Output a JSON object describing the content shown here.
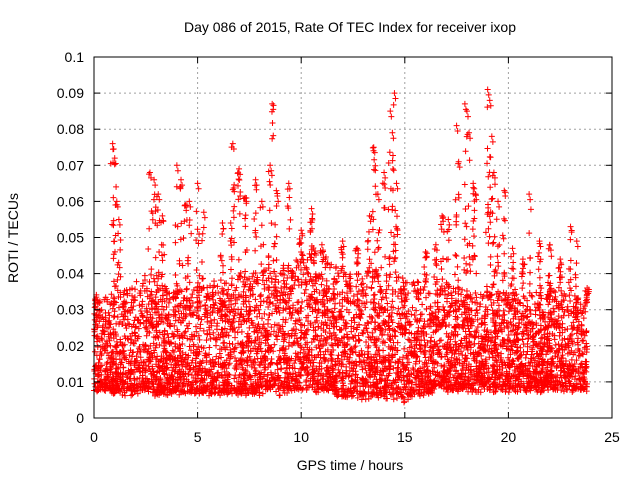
{
  "chart_data": {
    "type": "scatter",
    "title": "Day 086 of 2015, Rate Of TEC Index for receiver ixop",
    "xlabel": "GPS time / hours",
    "ylabel": "ROTI / TECUs",
    "xlim": [
      0,
      25
    ],
    "ylim": [
      0,
      0.1
    ],
    "x_ticks": [
      "0",
      "5",
      "10",
      "15",
      "20",
      "25"
    ],
    "y_ticks": [
      "0",
      "0.01",
      "0.02",
      "0.03",
      "0.04",
      "0.05",
      "0.06",
      "0.07",
      "0.08",
      "0.09",
      "0.1"
    ],
    "x_tick_values": [
      0,
      5,
      10,
      15,
      20,
      25
    ],
    "y_tick_values": [
      0,
      0.01,
      0.02,
      0.03,
      0.04,
      0.05,
      0.06,
      0.07,
      0.08,
      0.09,
      0.1
    ],
    "grid": true,
    "marker": "+",
    "marker_color": "#ff0000",
    "data_range_hours": [
      0,
      23.8
    ],
    "band": {
      "x": [
        0.0,
        0.5,
        1.0,
        1.5,
        2.0,
        2.5,
        3.0,
        3.5,
        4.0,
        4.5,
        5.0,
        5.5,
        6.0,
        6.5,
        7.0,
        7.5,
        8.0,
        8.5,
        9.0,
        9.5,
        10.0,
        10.5,
        11.0,
        11.5,
        12.0,
        12.5,
        13.0,
        13.5,
        14.0,
        14.5,
        15.0,
        15.5,
        16.0,
        16.5,
        17.0,
        17.5,
        18.0,
        18.5,
        19.0,
        19.5,
        20.0,
        20.5,
        21.0,
        21.5,
        22.0,
        22.5,
        23.0,
        23.5,
        23.8
      ],
      "low": [
        0.008,
        0.008,
        0.007,
        0.007,
        0.007,
        0.008,
        0.007,
        0.007,
        0.007,
        0.007,
        0.007,
        0.007,
        0.007,
        0.007,
        0.007,
        0.007,
        0.007,
        0.008,
        0.007,
        0.008,
        0.008,
        0.008,
        0.008,
        0.007,
        0.006,
        0.006,
        0.006,
        0.006,
        0.006,
        0.006,
        0.005,
        0.007,
        0.007,
        0.008,
        0.008,
        0.008,
        0.008,
        0.008,
        0.008,
        0.008,
        0.008,
        0.008,
        0.008,
        0.008,
        0.008,
        0.008,
        0.008,
        0.008,
        0.008
      ],
      "high": [
        0.033,
        0.032,
        0.032,
        0.034,
        0.036,
        0.038,
        0.037,
        0.035,
        0.034,
        0.035,
        0.035,
        0.036,
        0.036,
        0.037,
        0.038,
        0.038,
        0.039,
        0.041,
        0.04,
        0.042,
        0.044,
        0.045,
        0.043,
        0.042,
        0.04,
        0.039,
        0.038,
        0.039,
        0.04,
        0.039,
        0.037,
        0.036,
        0.035,
        0.034,
        0.034,
        0.035,
        0.034,
        0.033,
        0.034,
        0.034,
        0.034,
        0.034,
        0.033,
        0.033,
        0.034,
        0.034,
        0.033,
        0.032,
        0.032
      ]
    },
    "spikes": [
      {
        "x": 0.9,
        "y": 0.076
      },
      {
        "x": 1.0,
        "y": 0.072
      },
      {
        "x": 1.1,
        "y": 0.06
      },
      {
        "x": 1.2,
        "y": 0.055
      },
      {
        "x": 2.7,
        "y": 0.068
      },
      {
        "x": 2.9,
        "y": 0.066
      },
      {
        "x": 3.1,
        "y": 0.062
      },
      {
        "x": 3.3,
        "y": 0.056
      },
      {
        "x": 4.0,
        "y": 0.07
      },
      {
        "x": 4.2,
        "y": 0.066
      },
      {
        "x": 4.4,
        "y": 0.059
      },
      {
        "x": 4.6,
        "y": 0.06
      },
      {
        "x": 5.0,
        "y": 0.065
      },
      {
        "x": 5.3,
        "y": 0.057
      },
      {
        "x": 6.2,
        "y": 0.054
      },
      {
        "x": 6.6,
        "y": 0.054
      },
      {
        "x": 6.7,
        "y": 0.076
      },
      {
        "x": 7.0,
        "y": 0.069
      },
      {
        "x": 7.3,
        "y": 0.061
      },
      {
        "x": 7.8,
        "y": 0.066
      },
      {
        "x": 8.1,
        "y": 0.06
      },
      {
        "x": 8.5,
        "y": 0.07
      },
      {
        "x": 8.6,
        "y": 0.087
      },
      {
        "x": 8.8,
        "y": 0.063
      },
      {
        "x": 9.4,
        "y": 0.065
      },
      {
        "x": 10.0,
        "y": 0.052
      },
      {
        "x": 10.5,
        "y": 0.058
      },
      {
        "x": 11.0,
        "y": 0.048
      },
      {
        "x": 12.0,
        "y": 0.049
      },
      {
        "x": 12.7,
        "y": 0.047
      },
      {
        "x": 13.3,
        "y": 0.056
      },
      {
        "x": 13.5,
        "y": 0.075
      },
      {
        "x": 13.7,
        "y": 0.062
      },
      {
        "x": 14.0,
        "y": 0.068
      },
      {
        "x": 14.3,
        "y": 0.085
      },
      {
        "x": 14.4,
        "y": 0.079
      },
      {
        "x": 14.5,
        "y": 0.09
      },
      {
        "x": 14.6,
        "y": 0.065
      },
      {
        "x": 16.0,
        "y": 0.046
      },
      {
        "x": 16.5,
        "y": 0.048
      },
      {
        "x": 16.8,
        "y": 0.056
      },
      {
        "x": 17.1,
        "y": 0.055
      },
      {
        "x": 17.5,
        "y": 0.081
      },
      {
        "x": 17.6,
        "y": 0.071
      },
      {
        "x": 17.9,
        "y": 0.087
      },
      {
        "x": 18.0,
        "y": 0.085
      },
      {
        "x": 18.1,
        "y": 0.079
      },
      {
        "x": 18.3,
        "y": 0.065
      },
      {
        "x": 18.4,
        "y": 0.062
      },
      {
        "x": 19.0,
        "y": 0.091
      },
      {
        "x": 19.1,
        "y": 0.088
      },
      {
        "x": 19.2,
        "y": 0.078
      },
      {
        "x": 19.3,
        "y": 0.068
      },
      {
        "x": 19.5,
        "y": 0.06
      },
      {
        "x": 19.8,
        "y": 0.063
      },
      {
        "x": 20.2,
        "y": 0.047
      },
      {
        "x": 20.7,
        "y": 0.044
      },
      {
        "x": 21.0,
        "y": 0.062
      },
      {
        "x": 21.5,
        "y": 0.049
      },
      {
        "x": 22.0,
        "y": 0.048
      },
      {
        "x": 22.5,
        "y": 0.044
      },
      {
        "x": 23.0,
        "y": 0.053
      },
      {
        "x": 23.3,
        "y": 0.049
      },
      {
        "x": 23.8,
        "y": 0.036
      }
    ]
  }
}
